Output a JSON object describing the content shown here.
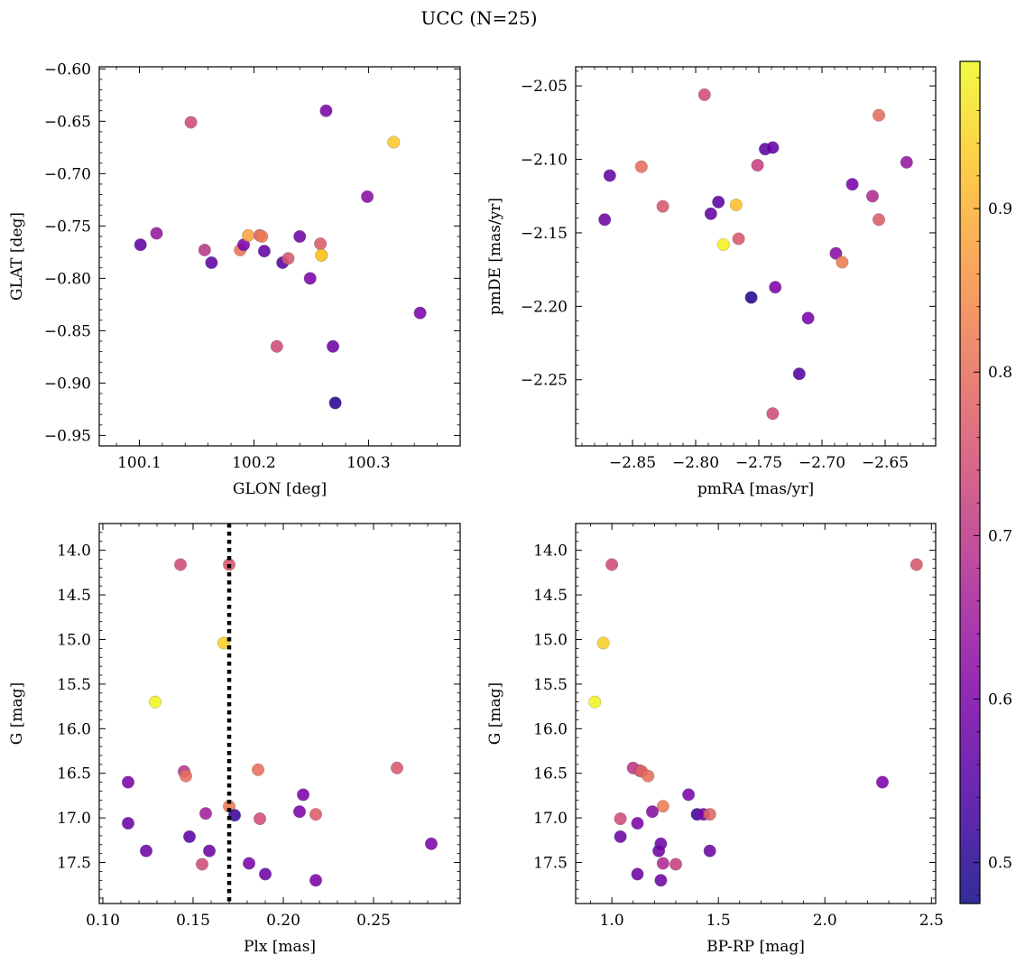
{
  "figure": {
    "title": "UCC (N=25)"
  },
  "colorbar": {
    "colormap": "plasma",
    "range": [
      0.475,
      0.99
    ],
    "ticks": [
      0.5,
      0.6,
      0.7,
      0.8,
      0.9
    ],
    "tick_labels": [
      "0.5",
      "0.6",
      "0.7",
      "0.8",
      "0.9"
    ]
  },
  "chart_data": [
    {
      "type": "scatter",
      "xlabel": "GLON [deg]",
      "ylabel": "GLAT [deg]",
      "xlim": [
        100.065,
        100.38
      ],
      "ylim": [
        -0.96,
        -0.598
      ],
      "xticks": [
        100.1,
        100.2,
        100.3
      ],
      "xtick_labels": [
        "100.1",
        "100.2",
        "100.3"
      ],
      "yticks": [
        -0.6,
        -0.65,
        -0.7,
        -0.75,
        -0.8,
        -0.85,
        -0.9,
        -0.95
      ],
      "ytick_labels": [
        "−0.60",
        "−0.65",
        "−0.70",
        "−0.75",
        "−0.80",
        "−0.85",
        "−0.90",
        "−0.95"
      ],
      "points": [
        {
          "x": 100.145,
          "y": -0.651,
          "c": 0.74
        },
        {
          "x": 100.263,
          "y": -0.64,
          "c": 0.6
        },
        {
          "x": 100.322,
          "y": -0.67,
          "c": 0.93
        },
        {
          "x": 100.299,
          "y": -0.722,
          "c": 0.62
        },
        {
          "x": 100.101,
          "y": -0.768,
          "c": 0.56
        },
        {
          "x": 100.115,
          "y": -0.757,
          "c": 0.64
        },
        {
          "x": 100.157,
          "y": -0.773,
          "c": 0.7
        },
        {
          "x": 100.163,
          "y": -0.785,
          "c": 0.56
        },
        {
          "x": 100.188,
          "y": -0.773,
          "c": 0.81
        },
        {
          "x": 100.191,
          "y": -0.768,
          "c": 0.6
        },
        {
          "x": 100.195,
          "y": -0.759,
          "c": 0.88
        },
        {
          "x": 100.205,
          "y": -0.759,
          "c": 0.78
        },
        {
          "x": 100.207,
          "y": -0.76,
          "c": 0.82
        },
        {
          "x": 100.209,
          "y": -0.774,
          "c": 0.57
        },
        {
          "x": 100.225,
          "y": -0.785,
          "c": 0.55
        },
        {
          "x": 100.23,
          "y": -0.781,
          "c": 0.76
        },
        {
          "x": 100.24,
          "y": -0.76,
          "c": 0.58
        },
        {
          "x": 100.249,
          "y": -0.8,
          "c": 0.6
        },
        {
          "x": 100.258,
          "y": -0.767,
          "c": 0.77
        },
        {
          "x": 100.259,
          "y": -0.778,
          "c": 0.98
        },
        {
          "x": 100.22,
          "y": -0.865,
          "c": 0.74
        },
        {
          "x": 100.269,
          "y": -0.865,
          "c": 0.58
        },
        {
          "x": 100.271,
          "y": -0.919,
          "c": 0.5
        },
        {
          "x": 100.345,
          "y": -0.833,
          "c": 0.6
        },
        {
          "x": 100.259,
          "y": -0.778,
          "c": 0.92
        }
      ]
    },
    {
      "type": "scatter",
      "xlabel": "pmRA [mas/yr]",
      "ylabel": "pmDE [mas/yr]",
      "xlim": [
        -2.895,
        -2.61
      ],
      "ylim": [
        -2.295,
        -2.037
      ],
      "xticks": [
        -2.85,
        -2.8,
        -2.75,
        -2.7,
        -2.65
      ],
      "xtick_labels": [
        "−2.85",
        "−2.80",
        "−2.75",
        "−2.70",
        "−2.65"
      ],
      "yticks": [
        -2.05,
        -2.1,
        -2.15,
        -2.2,
        -2.25
      ],
      "ytick_labels": [
        "−2.05",
        "−2.10",
        "−2.15",
        "−2.20",
        "−2.25"
      ],
      "points": [
        {
          "x": -2.793,
          "y": -2.056,
          "c": 0.74
        },
        {
          "x": -2.655,
          "y": -2.07,
          "c": 0.8
        },
        {
          "x": -2.868,
          "y": -2.111,
          "c": 0.57
        },
        {
          "x": -2.872,
          "y": -2.141,
          "c": 0.58
        },
        {
          "x": -2.843,
          "y": -2.105,
          "c": 0.8
        },
        {
          "x": -2.826,
          "y": -2.132,
          "c": 0.76
        },
        {
          "x": -2.788,
          "y": -2.137,
          "c": 0.57
        },
        {
          "x": -2.782,
          "y": -2.129,
          "c": 0.56
        },
        {
          "x": -2.768,
          "y": -2.131,
          "c": 0.92
        },
        {
          "x": -2.778,
          "y": -2.158,
          "c": 0.98
        },
        {
          "x": -2.766,
          "y": -2.154,
          "c": 0.76
        },
        {
          "x": -2.751,
          "y": -2.104,
          "c": 0.72
        },
        {
          "x": -2.745,
          "y": -2.093,
          "c": 0.56
        },
        {
          "x": -2.739,
          "y": -2.092,
          "c": 0.57
        },
        {
          "x": -2.756,
          "y": -2.194,
          "c": 0.5
        },
        {
          "x": -2.737,
          "y": -2.187,
          "c": 0.6
        },
        {
          "x": -2.676,
          "y": -2.117,
          "c": 0.6
        },
        {
          "x": -2.66,
          "y": -2.125,
          "c": 0.68
        },
        {
          "x": -2.655,
          "y": -2.141,
          "c": 0.77
        },
        {
          "x": -2.633,
          "y": -2.102,
          "c": 0.64
        },
        {
          "x": -2.689,
          "y": -2.164,
          "c": 0.62
        },
        {
          "x": -2.684,
          "y": -2.17,
          "c": 0.82
        },
        {
          "x": -2.711,
          "y": -2.208,
          "c": 0.6
        },
        {
          "x": -2.718,
          "y": -2.246,
          "c": 0.55
        },
        {
          "x": -2.739,
          "y": -2.273,
          "c": 0.74
        }
      ]
    },
    {
      "type": "scatter",
      "xlabel": "Plx [mas]",
      "ylabel": "G [mag]",
      "xlim": [
        0.098,
        0.298
      ],
      "ylim": [
        17.96,
        13.7
      ],
      "xticks": [
        0.1,
        0.15,
        0.2,
        0.25
      ],
      "xtick_labels": [
        "0.10",
        "0.15",
        "0.20",
        "0.25"
      ],
      "yticks": [
        14.0,
        14.5,
        15.0,
        15.5,
        16.0,
        16.5,
        17.0,
        17.5
      ],
      "ytick_labels": [
        "14.0",
        "14.5",
        "15.0",
        "15.5",
        "16.0",
        "16.5",
        "17.0",
        "17.5"
      ],
      "vline": {
        "x": 0.17,
        "style": "dotted"
      },
      "points": [
        {
          "x": 0.143,
          "y": 14.16,
          "c": 0.74
        },
        {
          "x": 0.17,
          "y": 14.16,
          "c": 0.76
        },
        {
          "x": 0.167,
          "y": 15.04,
          "c": 0.94
        },
        {
          "x": 0.129,
          "y": 15.7,
          "c": 0.98
        },
        {
          "x": 0.145,
          "y": 16.48,
          "c": 0.7
        },
        {
          "x": 0.146,
          "y": 16.53,
          "c": 0.8
        },
        {
          "x": 0.114,
          "y": 16.6,
          "c": 0.6
        },
        {
          "x": 0.186,
          "y": 16.46,
          "c": 0.8
        },
        {
          "x": 0.263,
          "y": 16.44,
          "c": 0.76
        },
        {
          "x": 0.211,
          "y": 16.74,
          "c": 0.6
        },
        {
          "x": 0.17,
          "y": 16.87,
          "c": 0.82
        },
        {
          "x": 0.173,
          "y": 16.97,
          "c": 0.52
        },
        {
          "x": 0.157,
          "y": 16.95,
          "c": 0.66
        },
        {
          "x": 0.187,
          "y": 17.01,
          "c": 0.74
        },
        {
          "x": 0.209,
          "y": 16.93,
          "c": 0.6
        },
        {
          "x": 0.218,
          "y": 16.96,
          "c": 0.77
        },
        {
          "x": 0.114,
          "y": 17.06,
          "c": 0.58
        },
        {
          "x": 0.148,
          "y": 17.21,
          "c": 0.56
        },
        {
          "x": 0.124,
          "y": 17.37,
          "c": 0.58
        },
        {
          "x": 0.159,
          "y": 17.37,
          "c": 0.58
        },
        {
          "x": 0.155,
          "y": 17.52,
          "c": 0.74
        },
        {
          "x": 0.181,
          "y": 17.51,
          "c": 0.6
        },
        {
          "x": 0.19,
          "y": 17.63,
          "c": 0.58
        },
        {
          "x": 0.218,
          "y": 17.7,
          "c": 0.6
        },
        {
          "x": 0.282,
          "y": 17.29,
          "c": 0.6
        }
      ]
    },
    {
      "type": "scatter",
      "xlabel": "BP-RP [mag]",
      "ylabel": "G [mag]",
      "xlim": [
        0.83,
        2.52
      ],
      "ylim": [
        17.96,
        13.7
      ],
      "xticks": [
        1.0,
        1.5,
        2.0,
        2.5
      ],
      "xtick_labels": [
        "1.0",
        "1.5",
        "2.0",
        "2.5"
      ],
      "yticks": [
        14.0,
        14.5,
        15.0,
        15.5,
        16.0,
        16.5,
        17.0,
        17.5
      ],
      "ytick_labels": [
        "14.0",
        "14.5",
        "15.0",
        "15.5",
        "16.0",
        "16.5",
        "17.0",
        "17.5"
      ],
      "points": [
        {
          "x": 1.0,
          "y": 14.16,
          "c": 0.74
        },
        {
          "x": 2.43,
          "y": 14.16,
          "c": 0.76
        },
        {
          "x": 0.96,
          "y": 15.04,
          "c": 0.94
        },
        {
          "x": 0.92,
          "y": 15.7,
          "c": 0.98
        },
        {
          "x": 1.1,
          "y": 16.44,
          "c": 0.7
        },
        {
          "x": 1.13,
          "y": 16.47,
          "c": 0.72
        },
        {
          "x": 1.14,
          "y": 16.48,
          "c": 0.78
        },
        {
          "x": 1.17,
          "y": 16.53,
          "c": 0.8
        },
        {
          "x": 1.36,
          "y": 16.74,
          "c": 0.6
        },
        {
          "x": 2.27,
          "y": 16.6,
          "c": 0.6
        },
        {
          "x": 1.24,
          "y": 16.87,
          "c": 0.82
        },
        {
          "x": 1.19,
          "y": 16.93,
          "c": 0.62
        },
        {
          "x": 1.4,
          "y": 16.96,
          "c": 0.52
        },
        {
          "x": 1.43,
          "y": 16.96,
          "c": 0.6
        },
        {
          "x": 1.46,
          "y": 16.96,
          "c": 0.78
        },
        {
          "x": 1.04,
          "y": 17.01,
          "c": 0.74
        },
        {
          "x": 1.12,
          "y": 17.06,
          "c": 0.6
        },
        {
          "x": 1.04,
          "y": 17.21,
          "c": 0.58
        },
        {
          "x": 1.23,
          "y": 17.29,
          "c": 0.58
        },
        {
          "x": 1.22,
          "y": 17.37,
          "c": 0.58
        },
        {
          "x": 1.46,
          "y": 17.37,
          "c": 0.58
        },
        {
          "x": 1.24,
          "y": 17.51,
          "c": 0.68
        },
        {
          "x": 1.3,
          "y": 17.52,
          "c": 0.72
        },
        {
          "x": 1.12,
          "y": 17.63,
          "c": 0.58
        },
        {
          "x": 1.23,
          "y": 17.7,
          "c": 0.58
        }
      ]
    }
  ]
}
